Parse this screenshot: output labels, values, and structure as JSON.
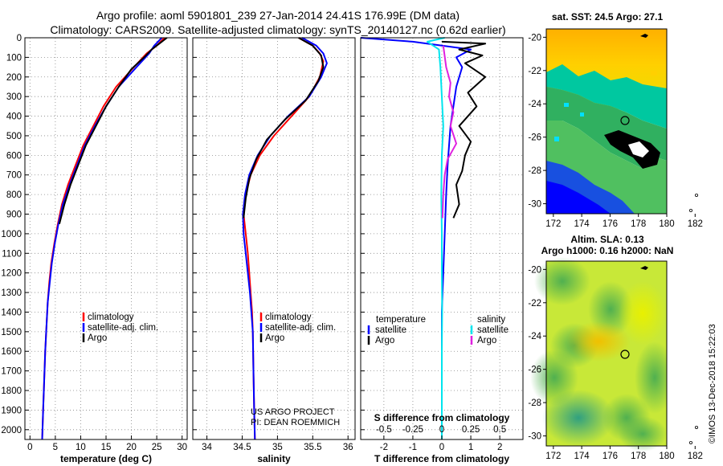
{
  "title_line1": "Argo profile: aoml 5901801_239 27-Jan-2014 24.41S 176.99E (DM data)",
  "title_line2": "Climatology: CARS2009. Satellite-adjusted climatology: synTS_20140127.nc (0.62d earlier)",
  "sst_title": "sat. SST: 24.5 Argo: 27.1",
  "sla_title1": "Altim. SLA: 0.13",
  "sla_title2": "Argo h1000: 0.16 h2000: NaN",
  "credit": "US ARGO PROJECT",
  "pi": "PI: DEAN ROEMMICH",
  "stamp": "©IMOS 13-Dec-2018 15:22:03",
  "colors": {
    "climatology": "#ff0000",
    "satellite": "#0000ff",
    "argo": "#000000",
    "sat_salinity": "#00e5ee",
    "argo_salinity": "#e020e0"
  },
  "chart_data": [
    {
      "type": "line",
      "xlabel": "temperature (deg C)",
      "xlim": [
        -1,
        31
      ],
      "ylim": [
        0,
        2050
      ],
      "x_ticks": [
        0,
        5,
        10,
        15,
        20,
        25,
        30
      ],
      "x_tick_labels": [
        "0",
        "5",
        "10",
        "15",
        "20",
        "25",
        "30"
      ],
      "y_ticks": [
        0,
        100,
        200,
        300,
        400,
        500,
        600,
        700,
        800,
        900,
        1000,
        1100,
        1200,
        1300,
        1400,
        1500,
        1600,
        1700,
        1800,
        1900,
        2000
      ],
      "grid": "dotted",
      "legend": [
        "climatology",
        "satellite-adj. clim.",
        "Argo"
      ],
      "series": [
        {
          "name": "climatology",
          "color": "#ff0000",
          "points": [
            [
              26.5,
              0
            ],
            [
              25,
              40
            ],
            [
              23,
              80
            ],
            [
              20.5,
              150
            ],
            [
              17,
              250
            ],
            [
              14.5,
              350
            ],
            [
              12.5,
              450
            ],
            [
              10.5,
              550
            ],
            [
              9,
              650
            ],
            [
              7.5,
              750
            ],
            [
              6.3,
              850
            ],
            [
              5.5,
              950
            ],
            [
              4.8,
              1050
            ],
            [
              4.2,
              1150
            ],
            [
              3.8,
              1250
            ],
            [
              3.5,
              1350
            ],
            [
              3.2,
              1500
            ],
            [
              3,
              1600
            ],
            [
              2.8,
              1750
            ],
            [
              2.6,
              1900
            ],
            [
              2.4,
              2050
            ]
          ]
        },
        {
          "name": "satellite-adj. clim.",
          "color": "#0000ff",
          "points": [
            [
              26,
              0
            ],
            [
              24.5,
              40
            ],
            [
              23.5,
              80
            ],
            [
              21,
              150
            ],
            [
              17.5,
              250
            ],
            [
              15,
              350
            ],
            [
              12.8,
              450
            ],
            [
              10.8,
              550
            ],
            [
              9.3,
              650
            ],
            [
              7.8,
              750
            ],
            [
              6.5,
              850
            ],
            [
              5.6,
              950
            ],
            [
              4.9,
              1050
            ],
            [
              4.3,
              1150
            ],
            [
              3.9,
              1250
            ],
            [
              3.5,
              1350
            ],
            [
              3.2,
              1500
            ],
            [
              3,
              1600
            ],
            [
              2.8,
              1750
            ],
            [
              2.6,
              1900
            ],
            [
              2.4,
              2050
            ]
          ]
        },
        {
          "name": "Argo",
          "color": "#000000",
          "points": [
            [
              27,
              0
            ],
            [
              25.5,
              30
            ],
            [
              24,
              60
            ],
            [
              22.5,
              100
            ],
            [
              20,
              160
            ],
            [
              17.5,
              250
            ],
            [
              15,
              350
            ],
            [
              13,
              450
            ],
            [
              11,
              550
            ],
            [
              9.5,
              650
            ],
            [
              8,
              750
            ],
            [
              6.8,
              850
            ],
            [
              5.8,
              950
            ]
          ]
        }
      ]
    },
    {
      "type": "line",
      "xlabel": "salinity",
      "xlim": [
        33.8,
        36.1
      ],
      "ylim": [
        0,
        2050
      ],
      "x_ticks": [
        34,
        34.5,
        35,
        35.5,
        36
      ],
      "x_tick_labels": [
        "34",
        "34.5",
        "35",
        "35.5",
        "36"
      ],
      "y_ticks": [
        0,
        100,
        200,
        300,
        400,
        500,
        600,
        700,
        800,
        900,
        1000,
        1100,
        1200,
        1300,
        1400,
        1500,
        1600,
        1700,
        1800,
        1900,
        2000
      ],
      "grid": "dotted",
      "legend": [
        "climatology",
        "satellite-adj. clim.",
        "Argo"
      ],
      "series": [
        {
          "name": "climatology",
          "color": "#ff0000",
          "points": [
            [
              35.3,
              0
            ],
            [
              35.5,
              40
            ],
            [
              35.6,
              80
            ],
            [
              35.65,
              120
            ],
            [
              35.6,
              200
            ],
            [
              35.45,
              300
            ],
            [
              35.2,
              400
            ],
            [
              34.95,
              500
            ],
            [
              34.75,
              600
            ],
            [
              34.62,
              700
            ],
            [
              34.55,
              800
            ],
            [
              34.52,
              900
            ],
            [
              34.55,
              1000
            ],
            [
              34.58,
              1100
            ],
            [
              34.6,
              1200
            ],
            [
              34.62,
              1300
            ],
            [
              34.64,
              1400
            ],
            [
              34.65,
              1500
            ],
            [
              34.66,
              1700
            ],
            [
              34.67,
              1900
            ],
            [
              34.68,
              2050
            ]
          ]
        },
        {
          "name": "satellite-adj. clim.",
          "color": "#0000ff",
          "points": [
            [
              35.35,
              0
            ],
            [
              35.55,
              40
            ],
            [
              35.65,
              80
            ],
            [
              35.7,
              130
            ],
            [
              35.62,
              200
            ],
            [
              35.45,
              300
            ],
            [
              35.15,
              400
            ],
            [
              34.9,
              500
            ],
            [
              34.72,
              600
            ],
            [
              34.6,
              700
            ],
            [
              34.54,
              800
            ],
            [
              34.51,
              900
            ],
            [
              34.52,
              1000
            ],
            [
              34.55,
              1100
            ],
            [
              34.58,
              1200
            ],
            [
              34.61,
              1300
            ],
            [
              34.63,
              1400
            ],
            [
              34.65,
              1500
            ],
            [
              34.66,
              1700
            ],
            [
              34.67,
              1900
            ],
            [
              34.68,
              2050
            ]
          ]
        },
        {
          "name": "Argo",
          "color": "#000000",
          "points": [
            [
              35.3,
              0
            ],
            [
              35.5,
              40
            ],
            [
              35.62,
              90
            ],
            [
              35.65,
              150
            ],
            [
              35.58,
              220
            ],
            [
              35.4,
              320
            ],
            [
              35.1,
              420
            ],
            [
              34.85,
              520
            ],
            [
              34.7,
              620
            ],
            [
              34.6,
              720
            ],
            [
              34.55,
              820
            ],
            [
              34.52,
              920
            ]
          ]
        }
      ]
    },
    {
      "type": "line",
      "xlabel": "T difference from climatology",
      "xlabel_top": "S difference from climatology",
      "xlim": [
        -2.8,
        2.8
      ],
      "ylim": [
        0,
        2050
      ],
      "x_ticks": [
        -2,
        -1,
        0,
        1,
        2
      ],
      "x_tick_labels": [
        "-2",
        "-1",
        "0",
        "1",
        "2"
      ],
      "x_ticks_secondary": [
        -0.5,
        -0.25,
        0,
        0.25,
        0.5
      ],
      "x_tick_labels_secondary": [
        "-0.5",
        "-0.25",
        "0",
        "0.25",
        "0.5"
      ],
      "y_ticks": [
        0,
        100,
        200,
        300,
        400,
        500,
        600,
        700,
        800,
        900,
        1000,
        1100,
        1200,
        1300,
        1400,
        1500,
        1600,
        1700,
        1800,
        1900,
        2000
      ],
      "grid": "dotted",
      "legend_temperature": {
        "heading": "temperature",
        "items": [
          "satellite",
          "Argo"
        ]
      },
      "legend_salinity": {
        "heading": "salinity",
        "items": [
          "satellite",
          "Argo"
        ]
      },
      "series": [
        {
          "name": "satellite",
          "group": "temperature",
          "color": "#0000ff",
          "points": [
            [
              -2.8,
              0
            ],
            [
              -1,
              20
            ],
            [
              0,
              40
            ],
            [
              1,
              60
            ],
            [
              0.5,
              100
            ],
            [
              0.7,
              150
            ],
            [
              0.5,
              250
            ],
            [
              0.4,
              350
            ],
            [
              0.3,
              450
            ],
            [
              0.25,
              550
            ],
            [
              0.2,
              650
            ],
            [
              0.15,
              800
            ],
            [
              0.1,
              1000
            ],
            [
              0.05,
              1200
            ],
            [
              0,
              1400
            ],
            [
              0,
              1600
            ],
            [
              0,
              1800
            ],
            [
              0,
              2050
            ]
          ]
        },
        {
          "name": "Argo",
          "group": "temperature",
          "color": "#000000",
          "points": [
            [
              0,
              20
            ],
            [
              1.5,
              30
            ],
            [
              0.6,
              60
            ],
            [
              1.4,
              90
            ],
            [
              0.8,
              130
            ],
            [
              1.5,
              200
            ],
            [
              0.9,
              280
            ],
            [
              1.2,
              350
            ],
            [
              0.6,
              450
            ],
            [
              1,
              530
            ],
            [
              0.8,
              600
            ],
            [
              0.7,
              680
            ],
            [
              0.5,
              750
            ],
            [
              0.6,
              850
            ],
            [
              0.4,
              920
            ]
          ]
        },
        {
          "name": "satellite",
          "group": "salinity",
          "color": "#00e5ee",
          "points": [
            [
              0.1,
              0
            ],
            [
              -0.5,
              20
            ],
            [
              -0.1,
              60
            ],
            [
              -0.05,
              150
            ],
            [
              0,
              300
            ],
            [
              0.05,
              450
            ],
            [
              0,
              600
            ],
            [
              -0.02,
              800
            ],
            [
              0,
              1000
            ],
            [
              0,
              1200
            ],
            [
              0.01,
              1400
            ],
            [
              0,
              1600
            ],
            [
              0,
              1800
            ],
            [
              0,
              2050
            ]
          ]
        },
        {
          "name": "Argo",
          "group": "salinity",
          "color": "#e020e0",
          "points": [
            [
              0.05,
              40
            ],
            [
              0.15,
              150
            ],
            [
              0.3,
              230
            ],
            [
              0.25,
              300
            ],
            [
              0.4,
              380
            ],
            [
              0.3,
              450
            ],
            [
              0.5,
              540
            ],
            [
              0.2,
              620
            ],
            [
              0.1,
              700
            ],
            [
              0.05,
              800
            ],
            [
              0.02,
              920
            ]
          ]
        }
      ]
    }
  ],
  "map_sst": {
    "x_ticks": [
      172,
      174,
      176,
      178,
      180,
      182
    ],
    "y_ticks": [
      -20,
      -22,
      -24,
      -26,
      -28,
      -30
    ],
    "x_tick_labels": [
      "172",
      "174",
      "176",
      "178",
      "180",
      "182"
    ],
    "y_tick_labels": [
      "-20",
      "-22",
      "-24",
      "-26",
      "-28",
      "-30"
    ],
    "marker": {
      "lon": 176.99,
      "lat": -24.41
    }
  },
  "map_sla": {
    "x_ticks": [
      172,
      174,
      176,
      178,
      180,
      182
    ],
    "y_ticks": [
      -20,
      -22,
      -24,
      -26,
      -28,
      -30
    ],
    "x_tick_labels": [
      "172",
      "174",
      "176",
      "178",
      "180",
      "182"
    ],
    "y_tick_labels": [
      "-20",
      "-22",
      "-24",
      "-26",
      "-28",
      "-30"
    ],
    "marker": {
      "lon": 176.99,
      "lat": -24.41
    }
  }
}
